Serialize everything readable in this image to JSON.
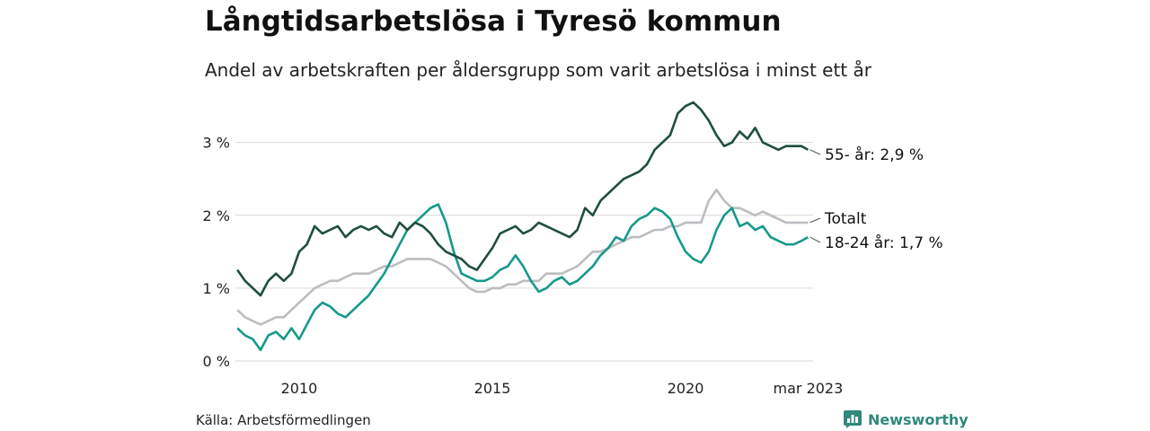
{
  "title": "Långtidsarbetslösa i Tyresö kommun",
  "subtitle": "Andel av arbetskraften per åldersgrupp som varit arbetslösa i minst ett år",
  "source": "Källa: Arbetsförmedlingen",
  "brand": "Newsworthy",
  "brand_icon": "bar-chart-logo-icon",
  "colors": {
    "age55": "#1f4e3d",
    "total": "#bdbdc2",
    "age18_24": "#16998a",
    "grid": "#d9d9d9",
    "brand": "#2f8a7b"
  },
  "chart_data": {
    "type": "line",
    "ylim": [
      0,
      3.6
    ],
    "yticks": [
      0,
      1,
      2,
      3
    ],
    "ytick_labels": [
      "0 %",
      "1 %",
      "2 %",
      "3 %"
    ],
    "xlim": [
      2008.35,
      2023.3
    ],
    "xticks": [
      2010,
      2015,
      2020,
      2023.17
    ],
    "xtick_labels": [
      "2010",
      "2015",
      "2020",
      "mar 2023"
    ],
    "grid": "horizontal",
    "end_labels": [
      {
        "series": "55- år",
        "text": "55- år: 2,9 %"
      },
      {
        "series": "Totalt",
        "text": "Totalt"
      },
      {
        "series": "18-24 år",
        "text": "18-24 år: 1,7 %"
      }
    ],
    "series": [
      {
        "name": "55- år",
        "color": "#1f4e3d",
        "x": [
          2008.4,
          2008.6,
          2008.8,
          2009.0,
          2009.2,
          2009.4,
          2009.6,
          2009.8,
          2010.0,
          2010.2,
          2010.4,
          2010.6,
          2010.8,
          2011.0,
          2011.2,
          2011.4,
          2011.6,
          2011.8,
          2012.0,
          2012.2,
          2012.4,
          2012.6,
          2012.8,
          2013.0,
          2013.2,
          2013.4,
          2013.6,
          2013.8,
          2014.0,
          2014.2,
          2014.4,
          2014.6,
          2014.8,
          2015.0,
          2015.2,
          2015.4,
          2015.6,
          2015.8,
          2016.0,
          2016.2,
          2016.4,
          2016.6,
          2016.8,
          2017.0,
          2017.2,
          2017.4,
          2017.6,
          2017.8,
          2018.0,
          2018.2,
          2018.4,
          2018.6,
          2018.8,
          2019.0,
          2019.2,
          2019.4,
          2019.6,
          2019.8,
          2020.0,
          2020.2,
          2020.4,
          2020.6,
          2020.8,
          2021.0,
          2021.2,
          2021.4,
          2021.6,
          2021.8,
          2022.0,
          2022.2,
          2022.4,
          2022.6,
          2022.8,
          2023.0,
          2023.17
        ],
        "values": [
          1.25,
          1.1,
          1.0,
          0.9,
          1.1,
          1.2,
          1.1,
          1.2,
          1.5,
          1.6,
          1.85,
          1.75,
          1.8,
          1.85,
          1.7,
          1.8,
          1.85,
          1.8,
          1.85,
          1.75,
          1.7,
          1.9,
          1.8,
          1.9,
          1.85,
          1.75,
          1.6,
          1.5,
          1.45,
          1.4,
          1.3,
          1.25,
          1.4,
          1.55,
          1.75,
          1.8,
          1.85,
          1.75,
          1.8,
          1.9,
          1.85,
          1.8,
          1.75,
          1.7,
          1.8,
          2.1,
          2.0,
          2.2,
          2.3,
          2.4,
          2.5,
          2.55,
          2.6,
          2.7,
          2.9,
          3.0,
          3.1,
          3.4,
          3.5,
          3.55,
          3.45,
          3.3,
          3.1,
          2.95,
          3.0,
          3.15,
          3.05,
          3.2,
          3.0,
          2.95,
          2.9,
          2.95,
          2.95,
          2.95,
          2.9
        ]
      },
      {
        "name": "Totalt",
        "color": "#bdbdc2",
        "x": [
          2008.4,
          2008.6,
          2008.8,
          2009.0,
          2009.2,
          2009.4,
          2009.6,
          2009.8,
          2010.0,
          2010.2,
          2010.4,
          2010.6,
          2010.8,
          2011.0,
          2011.2,
          2011.4,
          2011.6,
          2011.8,
          2012.0,
          2012.2,
          2012.4,
          2012.6,
          2012.8,
          2013.0,
          2013.2,
          2013.4,
          2013.6,
          2013.8,
          2014.0,
          2014.2,
          2014.4,
          2014.6,
          2014.8,
          2015.0,
          2015.2,
          2015.4,
          2015.6,
          2015.8,
          2016.0,
          2016.2,
          2016.4,
          2016.6,
          2016.8,
          2017.0,
          2017.2,
          2017.4,
          2017.6,
          2017.8,
          2018.0,
          2018.2,
          2018.4,
          2018.6,
          2018.8,
          2019.0,
          2019.2,
          2019.4,
          2019.6,
          2019.8,
          2020.0,
          2020.2,
          2020.4,
          2020.6,
          2020.8,
          2021.0,
          2021.2,
          2021.4,
          2021.6,
          2021.8,
          2022.0,
          2022.2,
          2022.4,
          2022.6,
          2022.8,
          2023.0,
          2023.17
        ],
        "values": [
          0.7,
          0.6,
          0.55,
          0.5,
          0.55,
          0.6,
          0.6,
          0.7,
          0.8,
          0.9,
          1.0,
          1.05,
          1.1,
          1.1,
          1.15,
          1.2,
          1.2,
          1.2,
          1.25,
          1.3,
          1.3,
          1.35,
          1.4,
          1.4,
          1.4,
          1.4,
          1.35,
          1.3,
          1.2,
          1.1,
          1.0,
          0.95,
          0.95,
          1.0,
          1.0,
          1.05,
          1.05,
          1.1,
          1.1,
          1.1,
          1.2,
          1.2,
          1.2,
          1.25,
          1.3,
          1.4,
          1.5,
          1.5,
          1.55,
          1.6,
          1.65,
          1.7,
          1.7,
          1.75,
          1.8,
          1.8,
          1.85,
          1.85,
          1.9,
          1.9,
          1.9,
          2.2,
          2.35,
          2.2,
          2.1,
          2.1,
          2.05,
          2.0,
          2.05,
          2.0,
          1.95,
          1.9,
          1.9,
          1.9,
          1.9
        ]
      },
      {
        "name": "18-24 år",
        "color": "#16998a",
        "x": [
          2008.4,
          2008.6,
          2008.8,
          2009.0,
          2009.2,
          2009.4,
          2009.6,
          2009.8,
          2010.0,
          2010.2,
          2010.4,
          2010.6,
          2010.8,
          2011.0,
          2011.2,
          2011.4,
          2011.6,
          2011.8,
          2012.0,
          2012.2,
          2012.4,
          2012.6,
          2012.8,
          2013.0,
          2013.2,
          2013.4,
          2013.6,
          2013.8,
          2014.0,
          2014.2,
          2014.4,
          2014.6,
          2014.8,
          2015.0,
          2015.2,
          2015.4,
          2015.6,
          2015.8,
          2016.0,
          2016.2,
          2016.4,
          2016.6,
          2016.8,
          2017.0,
          2017.2,
          2017.4,
          2017.6,
          2017.8,
          2018.0,
          2018.2,
          2018.4,
          2018.6,
          2018.8,
          2019.0,
          2019.2,
          2019.4,
          2019.6,
          2019.8,
          2020.0,
          2020.2,
          2020.4,
          2020.6,
          2020.8,
          2021.0,
          2021.2,
          2021.4,
          2021.6,
          2021.8,
          2022.0,
          2022.2,
          2022.4,
          2022.6,
          2022.8,
          2023.0,
          2023.17
        ],
        "values": [
          0.45,
          0.35,
          0.3,
          0.15,
          0.35,
          0.4,
          0.3,
          0.45,
          0.3,
          0.5,
          0.7,
          0.8,
          0.75,
          0.65,
          0.6,
          0.7,
          0.8,
          0.9,
          1.05,
          1.2,
          1.4,
          1.6,
          1.8,
          1.9,
          2.0,
          2.1,
          2.15,
          1.9,
          1.5,
          1.2,
          1.15,
          1.1,
          1.1,
          1.15,
          1.25,
          1.3,
          1.45,
          1.3,
          1.1,
          0.95,
          1.0,
          1.1,
          1.15,
          1.05,
          1.1,
          1.2,
          1.3,
          1.45,
          1.55,
          1.7,
          1.65,
          1.85,
          1.95,
          2.0,
          2.1,
          2.05,
          1.95,
          1.7,
          1.5,
          1.4,
          1.35,
          1.5,
          1.8,
          2.0,
          2.1,
          1.85,
          1.9,
          1.8,
          1.85,
          1.7,
          1.65,
          1.6,
          1.6,
          1.65,
          1.7
        ]
      }
    ]
  }
}
